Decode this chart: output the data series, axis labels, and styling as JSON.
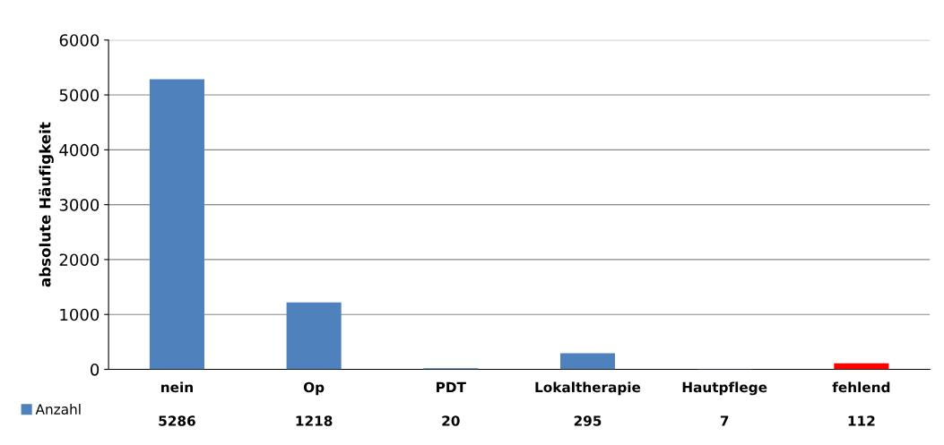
{
  "chart_data": {
    "type": "bar",
    "ylabel": "absolute Häufigkeit",
    "categories": [
      "nein",
      "Op",
      "PDT",
      "Lokaltherapie",
      "Hautpflege",
      "fehlend"
    ],
    "series": [
      {
        "name": "Anzahl",
        "color": "#4f81bd",
        "colors": [
          "#4f81bd",
          "#4f81bd",
          "#4f81bd",
          "#4f81bd",
          "#4f81bd",
          "#ff0000"
        ],
        "values": [
          5286,
          1218,
          20,
          295,
          7,
          112
        ]
      }
    ],
    "ylim": [
      0,
      6000
    ],
    "yticks": [
      0,
      1000,
      2000,
      3000,
      4000,
      5000,
      6000
    ],
    "grid": "y",
    "data_labels": true,
    "legend": "bottom left"
  }
}
